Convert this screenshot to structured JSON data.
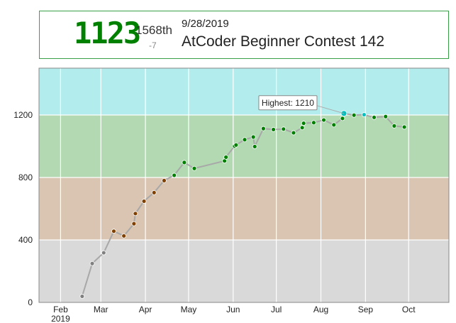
{
  "card": {
    "rating": "1123",
    "place": "1568th",
    "delta": "-7",
    "date": "9/28/2019",
    "contest": "AtCoder Beginner Contest 142"
  },
  "tooltip": {
    "text": "Highest: 1210"
  },
  "chart_data": {
    "type": "line",
    "xlim": [
      "2019-01-17",
      "2019-10-29"
    ],
    "ylim": [
      0,
      1500
    ],
    "y_ticks": [
      0,
      400,
      800,
      1200
    ],
    "x_ticks": [
      {
        "date": "2019-02-01",
        "label": "Feb",
        "sublabel": "2019"
      },
      {
        "date": "2019-03-01",
        "label": "Mar",
        "sublabel": ""
      },
      {
        "date": "2019-04-01",
        "label": "Apr",
        "sublabel": ""
      },
      {
        "date": "2019-05-01",
        "label": "May",
        "sublabel": ""
      },
      {
        "date": "2019-06-01",
        "label": "Jun",
        "sublabel": ""
      },
      {
        "date": "2019-07-01",
        "label": "Jul",
        "sublabel": ""
      },
      {
        "date": "2019-08-01",
        "label": "Aug",
        "sublabel": ""
      },
      {
        "date": "2019-09-01",
        "label": "Sep",
        "sublabel": ""
      },
      {
        "date": "2019-10-01",
        "label": "Oct",
        "sublabel": ""
      }
    ],
    "bands": [
      {
        "from": 0,
        "to": 400,
        "color": "#d9d9d9"
      },
      {
        "from": 400,
        "to": 800,
        "color": "#d9c5b2"
      },
      {
        "from": 800,
        "to": 1200,
        "color": "#b2d9b2"
      },
      {
        "from": 1200,
        "to": 1500,
        "color": "#b2ecec"
      }
    ],
    "point_colors": {
      "gray": "#808080",
      "brown": "#804000",
      "green": "#008000",
      "cyan": "#00c0c0"
    },
    "highest": {
      "date": "2019-08-17",
      "value": 1210
    },
    "points": [
      {
        "date": "2019-02-16",
        "value": 39
      },
      {
        "date": "2019-02-23",
        "value": 249
      },
      {
        "date": "2019-03-03",
        "value": 318
      },
      {
        "date": "2019-03-10",
        "value": 456
      },
      {
        "date": "2019-03-17",
        "value": 426
      },
      {
        "date": "2019-03-24",
        "value": 504
      },
      {
        "date": "2019-03-25",
        "value": 569
      },
      {
        "date": "2019-03-31",
        "value": 648
      },
      {
        "date": "2019-04-07",
        "value": 703
      },
      {
        "date": "2019-04-14",
        "value": 780
      },
      {
        "date": "2019-04-21",
        "value": 814
      },
      {
        "date": "2019-04-28",
        "value": 896
      },
      {
        "date": "2019-05-05",
        "value": 858
      },
      {
        "date": "2019-05-26",
        "value": 906
      },
      {
        "date": "2019-05-27",
        "value": 930
      },
      {
        "date": "2019-06-02",
        "value": 1001
      },
      {
        "date": "2019-06-03",
        "value": 1008
      },
      {
        "date": "2019-06-09",
        "value": 1042
      },
      {
        "date": "2019-06-15",
        "value": 1059
      },
      {
        "date": "2019-06-16",
        "value": 998
      },
      {
        "date": "2019-06-22",
        "value": 1113
      },
      {
        "date": "2019-06-29",
        "value": 1107
      },
      {
        "date": "2019-07-06",
        "value": 1110
      },
      {
        "date": "2019-07-13",
        "value": 1086
      },
      {
        "date": "2019-07-19",
        "value": 1119
      },
      {
        "date": "2019-07-20",
        "value": 1147
      },
      {
        "date": "2019-07-27",
        "value": 1151
      },
      {
        "date": "2019-08-03",
        "value": 1168
      },
      {
        "date": "2019-08-10",
        "value": 1137
      },
      {
        "date": "2019-08-16",
        "value": 1178
      },
      {
        "date": "2019-08-17",
        "value": 1210
      },
      {
        "date": "2019-08-24",
        "value": 1199
      },
      {
        "date": "2019-08-31",
        "value": 1202
      },
      {
        "date": "2019-09-07",
        "value": 1185
      },
      {
        "date": "2019-09-15",
        "value": 1190
      },
      {
        "date": "2019-09-21",
        "value": 1130
      },
      {
        "date": "2019-09-28",
        "value": 1123
      }
    ]
  }
}
